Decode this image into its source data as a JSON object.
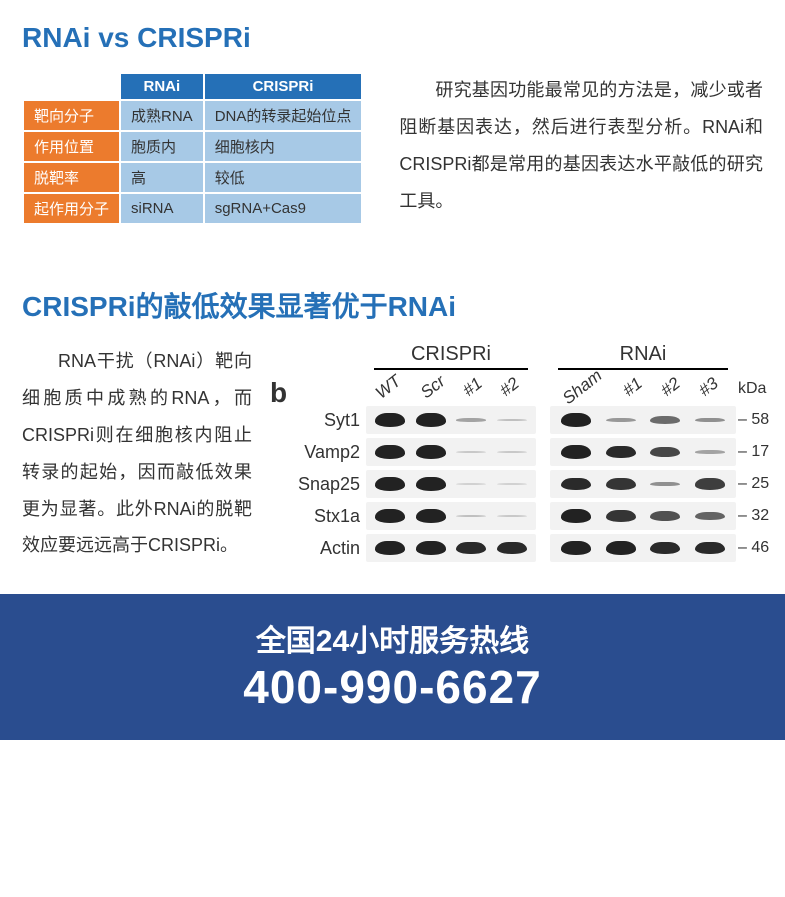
{
  "headings": {
    "h1": "RNAi vs CRISPRi",
    "h2": "CRISPRi的敲低效果显著优于RNAi"
  },
  "cmp_table": {
    "col_headers": [
      "RNAi",
      "CRISPRi"
    ],
    "rows": [
      {
        "label": "靶向分子",
        "cells": [
          "成熟RNA",
          "DNA的转录起始位点"
        ]
      },
      {
        "label": "作用位置",
        "cells": [
          "胞质内",
          "细胞核内"
        ]
      },
      {
        "label": "脱靶率",
        "cells": [
          "高",
          "较低"
        ]
      },
      {
        "label": "起作用分子",
        "cells": [
          "siRNA",
          "sgRNA+Cas9"
        ]
      }
    ],
    "colors": {
      "header_bg": "#2570b7",
      "header_fg": "#ffffff",
      "rowhead_bg": "#ec7b2d",
      "rowhead_fg": "#ffffff",
      "cell_bg": "#a7c9e6"
    }
  },
  "paragraphs": {
    "p1": "研究基因功能最常见的方法是，减少或者阻断基因表达，然后进行表型分析。RNAi和CRISPRi都是常用的基因表达水平敲低的研究工具。",
    "p2": "RNA干扰（RNAi）靶向细胞质中成熟的RNA，而CRISPRi则在细胞核内阻止转录的起始，因而敲低效果更为显著。此外RNAi的脱靶效应要远远高于CRISPRi。"
  },
  "western_blot": {
    "panel_letter": "b",
    "groups": [
      {
        "label": "CRISPRi",
        "lanes": [
          "WT",
          "Scr",
          "#1",
          "#2"
        ]
      },
      {
        "label": "RNAi",
        "lanes": [
          "Sham",
          "#1",
          "#2",
          "#3"
        ]
      }
    ],
    "kda_label": "kDa",
    "rows": [
      {
        "name": "Syt1",
        "size": 58,
        "intensities": [
          [
            0.95,
            0.95,
            0.25,
            0.1
          ],
          [
            0.95,
            0.3,
            0.55,
            0.35
          ]
        ]
      },
      {
        "name": "Vamp2",
        "size": 17,
        "intensities": [
          [
            0.95,
            0.95,
            0.05,
            0.05
          ],
          [
            0.95,
            0.9,
            0.75,
            0.25
          ]
        ]
      },
      {
        "name": "Snap25",
        "size": 25,
        "intensities": [
          [
            0.95,
            0.95,
            0.0,
            0.0
          ],
          [
            0.9,
            0.85,
            0.35,
            0.8
          ]
        ]
      },
      {
        "name": "Stx1a",
        "size": 32,
        "intensities": [
          [
            0.95,
            0.95,
            0.1,
            0.05
          ],
          [
            0.95,
            0.85,
            0.7,
            0.6
          ]
        ]
      },
      {
        "name": "Actin",
        "size": 46,
        "intensities": [
          [
            0.95,
            0.95,
            0.9,
            0.9
          ],
          [
            0.95,
            0.95,
            0.9,
            0.9
          ]
        ]
      }
    ],
    "band_base_width": 30,
    "band_base_height": 14
  },
  "footer": {
    "line1": "全国24小时服务热线",
    "line2": "400-990-6627",
    "bg": "#2a4d8f",
    "fg": "#ffffff",
    "line1_fontsize": 30,
    "line2_fontsize": 46
  },
  "style": {
    "heading_color": "#2570b7",
    "body_font": "Microsoft YaHei, PingFang SC, Arial, sans-serif"
  }
}
